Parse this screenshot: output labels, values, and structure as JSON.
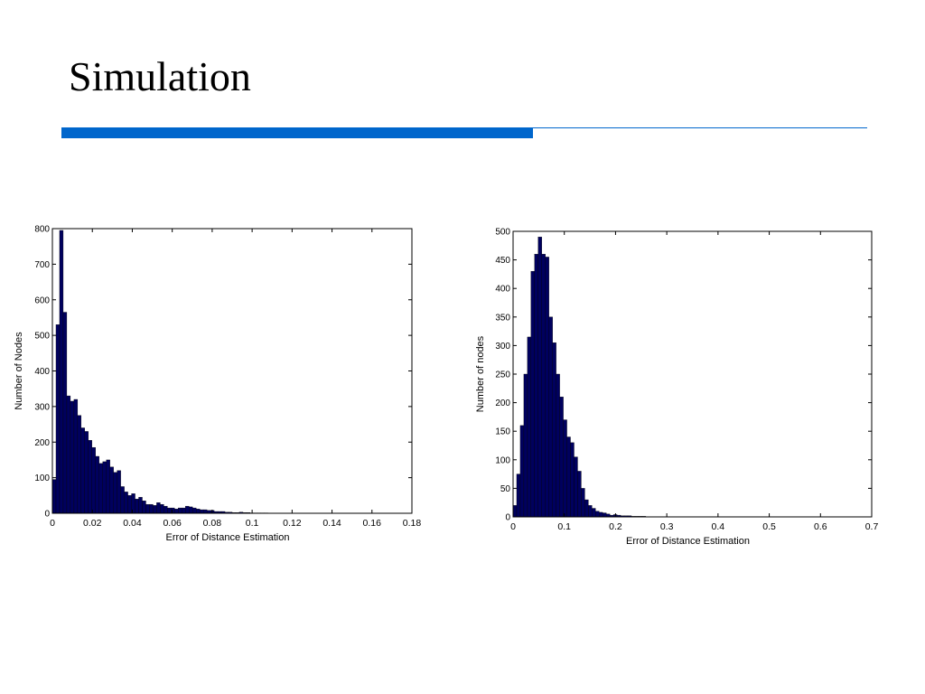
{
  "slide": {
    "title": "Simulation",
    "accent_color": "#0066cc"
  },
  "chart_data": [
    {
      "type": "bar",
      "title": "",
      "xlabel": "Error of Distance Estimation",
      "ylabel": "Number of Nodes",
      "xlim": [
        0,
        0.18
      ],
      "ylim": [
        0,
        800
      ],
      "xticks": [
        "0",
        "0.02",
        "0.04",
        "0.06",
        "0.08",
        "0.1",
        "0.12",
        "0.14",
        "0.16",
        "0.18"
      ],
      "yticks": [
        "0",
        "100",
        "200",
        "300",
        "400",
        "500",
        "600",
        "700",
        "800"
      ],
      "bar_color": "#00005e",
      "bin_width": 0.0018,
      "values": [
        95,
        530,
        795,
        565,
        330,
        315,
        320,
        275,
        240,
        230,
        205,
        185,
        160,
        140,
        145,
        150,
        130,
        115,
        120,
        75,
        60,
        50,
        55,
        40,
        45,
        35,
        25,
        25,
        22,
        30,
        25,
        20,
        15,
        15,
        12,
        15,
        15,
        20,
        18,
        15,
        12,
        10,
        10,
        8,
        8,
        5,
        5,
        5,
        3,
        3,
        2,
        2,
        3,
        2,
        2,
        1,
        1,
        1,
        1,
        1,
        0,
        0,
        0,
        0,
        0,
        0,
        0,
        0,
        0,
        0,
        0,
        0,
        0,
        0,
        0,
        0,
        0,
        0,
        0,
        0,
        0,
        0,
        0,
        0,
        0,
        0,
        0,
        0,
        0,
        0,
        0,
        0,
        0,
        0,
        0,
        0,
        0,
        0,
        0,
        0
      ],
      "grid": false
    },
    {
      "type": "bar",
      "title": "",
      "xlabel": "Error of Distance Estimation",
      "ylabel": "Number of nodes",
      "xlim": [
        0,
        0.7
      ],
      "ylim": [
        0,
        500
      ],
      "xticks": [
        "0",
        "0.1",
        "0.2",
        "0.3",
        "0.4",
        "0.5",
        "0.6",
        "0.7"
      ],
      "yticks": [
        "0",
        "50",
        "100",
        "150",
        "200",
        "250",
        "300",
        "350",
        "400",
        "450",
        "500"
      ],
      "bar_color": "#00005e",
      "bin_width": 0.007,
      "values": [
        20,
        75,
        160,
        250,
        315,
        430,
        460,
        490,
        460,
        455,
        350,
        305,
        250,
        210,
        170,
        140,
        130,
        105,
        80,
        50,
        30,
        20,
        15,
        10,
        8,
        7,
        5,
        3,
        4,
        3,
        2,
        2,
        2,
        1,
        1,
        1,
        1,
        0,
        0,
        0,
        0,
        0,
        0,
        0,
        0,
        0,
        0,
        0,
        0,
        0,
        0,
        0,
        0,
        0,
        0,
        0,
        0,
        0,
        0,
        0,
        0,
        0,
        0,
        0,
        0,
        0,
        0,
        0,
        0,
        0,
        0,
        0,
        0,
        0,
        0,
        0,
        0,
        0,
        0,
        0,
        0,
        0,
        0,
        0,
        0,
        0,
        0,
        0,
        0,
        0,
        0,
        0,
        0,
        0,
        0,
        0,
        0,
        0,
        0,
        0
      ],
      "grid": false
    }
  ]
}
